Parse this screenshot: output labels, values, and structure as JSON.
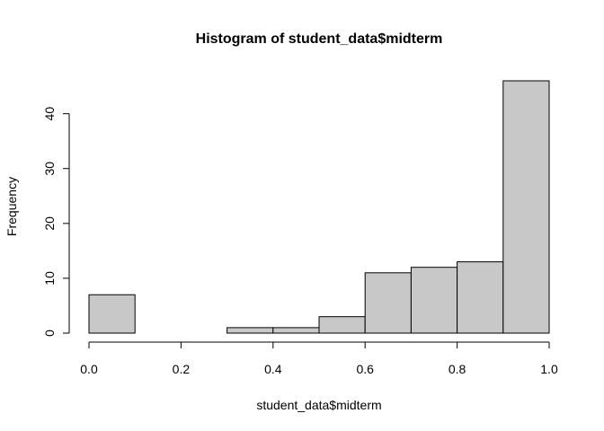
{
  "chart_data": {
    "type": "bar",
    "title": "Histogram of student_data$midterm",
    "xlabel": "student_data$midterm",
    "ylabel": "Frequency",
    "bin_edges": [
      0.0,
      0.1,
      0.2,
      0.3,
      0.4,
      0.5,
      0.6,
      0.7,
      0.8,
      0.9,
      1.0
    ],
    "values": [
      7,
      0,
      0,
      1,
      1,
      3,
      11,
      12,
      13,
      46
    ],
    "xlim": [
      0.0,
      1.0
    ],
    "ylim": [
      0,
      46
    ],
    "x_ticks": [
      "0.0",
      "0.2",
      "0.4",
      "0.6",
      "0.8",
      "1.0"
    ],
    "y_ticks": [
      "0",
      "10",
      "20",
      "30",
      "40"
    ],
    "bar_color": "#c8c8c8",
    "grid": false
  }
}
